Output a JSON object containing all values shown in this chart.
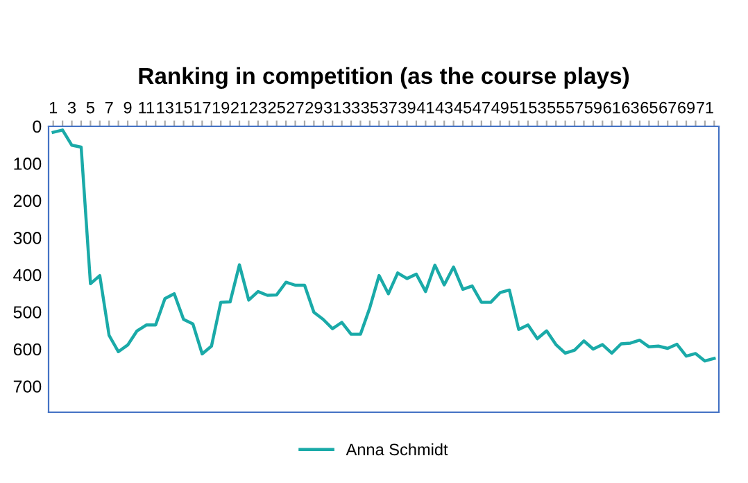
{
  "chart_data": {
    "type": "line",
    "title": "Ranking in competition (as the course plays)",
    "categories": [
      "1",
      null,
      "3",
      null,
      "5",
      null,
      "7",
      null,
      "9",
      null,
      "11",
      null,
      "13",
      null,
      "15",
      null,
      "17",
      null,
      "19",
      null,
      "21",
      null,
      "23",
      null,
      "25",
      null,
      "27",
      null,
      "29",
      null,
      "31",
      null,
      "33",
      null,
      "35",
      null,
      "37",
      null,
      "39",
      null,
      "41",
      null,
      "43",
      null,
      "45",
      null,
      "47",
      null,
      "49",
      null,
      "51",
      null,
      "53",
      null,
      "55",
      null,
      "57",
      null,
      "59",
      null,
      "61",
      null,
      "63",
      null,
      "65",
      null,
      "67",
      null,
      "69",
      null,
      "71",
      null
    ],
    "series": [
      {
        "name": "Anna Schmidt",
        "color": "#1aaaa8",
        "values": [
          16,
          10,
          51,
          56,
          424,
          402,
          563,
          607,
          589,
          551,
          535,
          535,
          464,
          451,
          520,
          532,
          613,
          592,
          474,
          473,
          373,
          468,
          445,
          455,
          454,
          420,
          428,
          428,
          501,
          520,
          545,
          528,
          560,
          560,
          489,
          402,
          451,
          395,
          410,
          398,
          445,
          374,
          427,
          379,
          439,
          430,
          474,
          474,
          448,
          441,
          547,
          535,
          572,
          551,
          588,
          611,
          603,
          578,
          600,
          588,
          611,
          586,
          584,
          576,
          594,
          592,
          598,
          587,
          619,
          612,
          632,
          625
        ]
      }
    ],
    "ylim": [
      770,
      0
    ],
    "yticks": [
      0,
      100,
      200,
      300,
      400,
      500,
      600,
      700
    ],
    "legend": "bottom",
    "grid": false,
    "marker": "none",
    "line_style": "solid"
  }
}
